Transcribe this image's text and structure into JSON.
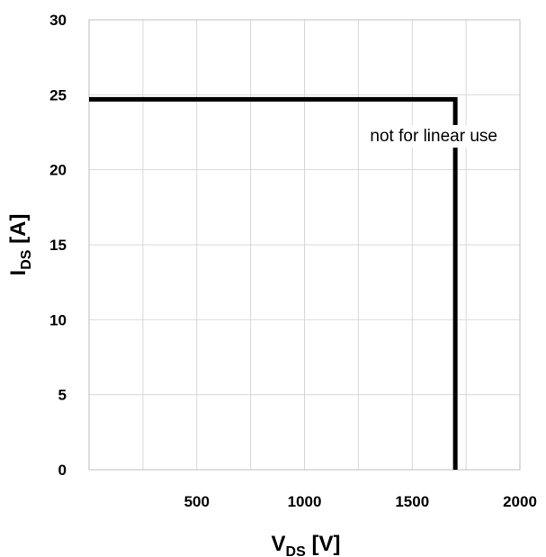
{
  "chart_data": {
    "type": "line",
    "title": "",
    "xlabel": {
      "main": "V",
      "sub": "DS",
      "unit": " [V]"
    },
    "ylabel": {
      "main": "I",
      "sub": "DS",
      "unit": " [A]"
    },
    "xlim": [
      0,
      2000
    ],
    "ylim": [
      0,
      30
    ],
    "x_ticks": [
      500,
      1000,
      1500,
      2000
    ],
    "x_tick_labels": [
      "500",
      "1000",
      "1500",
      "2000"
    ],
    "y_ticks": [
      0,
      5,
      10,
      15,
      20,
      25,
      30
    ],
    "y_tick_labels": [
      "0",
      "5",
      "10",
      "15",
      "20",
      "25",
      "30"
    ],
    "x_grid_step": 250,
    "y_grid_step": 5,
    "grid": true,
    "legend": "none",
    "series": [
      {
        "x": [
          0,
          1700,
          1700
        ],
        "y": [
          24.7,
          24.7,
          0
        ],
        "color": "#000000"
      }
    ],
    "annotations": [
      {
        "text": "not for linear use",
        "x": 1600,
        "y": 21.9
      }
    ]
  }
}
